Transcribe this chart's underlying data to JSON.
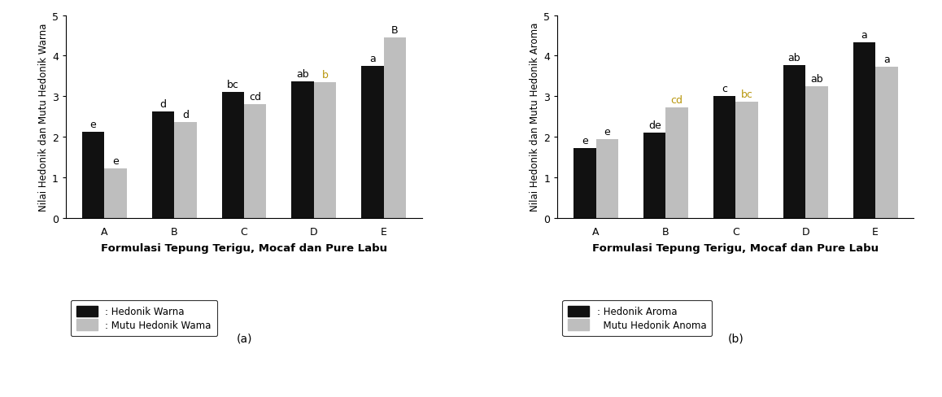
{
  "chart_a": {
    "categories": [
      "A",
      "B",
      "C",
      "D",
      "E"
    ],
    "hedonik_warna": [
      2.12,
      2.63,
      3.1,
      3.37,
      3.75
    ],
    "mutu_hedonik_warna": [
      1.22,
      2.37,
      2.8,
      3.35,
      4.45
    ],
    "hedonik_labels": [
      "e",
      "d",
      "bc",
      "ab",
      "a"
    ],
    "mutu_labels": [
      "e",
      "d",
      "cd",
      "b",
      "B"
    ],
    "hedonik_label_colors": [
      "#000000",
      "#000000",
      "#000000",
      "#000000",
      "#000000"
    ],
    "mutu_label_colors": [
      "#000000",
      "#000000",
      "#000000",
      "#b8960c",
      "#000000"
    ],
    "ylabel": "Nilai Hedonik dan Mutu Hedonik Warna",
    "xlabel": "Formulasi Tepung Terigu, Mocaf dan Pure Labu",
    "ylim": [
      0,
      5
    ],
    "yticks": [
      0,
      1,
      2,
      3,
      4,
      5
    ],
    "legend1": ": Hedonik Warna",
    "legend2": ": Mutu Hedonik Wama",
    "subtitle": "(a)"
  },
  "chart_b": {
    "categories": [
      "A",
      "B",
      "C",
      "D",
      "E"
    ],
    "hedonik_aroma": [
      1.73,
      2.1,
      3.0,
      3.77,
      4.33
    ],
    "mutu_hedonik_aroma": [
      1.95,
      2.73,
      2.87,
      3.25,
      3.73
    ],
    "hedonik_labels": [
      "e",
      "de",
      "c",
      "ab",
      "a"
    ],
    "mutu_labels": [
      "e",
      "cd",
      "bc",
      "ab",
      "a"
    ],
    "hedonik_label_colors": [
      "#000000",
      "#000000",
      "#000000",
      "#000000",
      "#000000"
    ],
    "mutu_label_colors": [
      "#000000",
      "#b8960c",
      "#b8960c",
      "#000000",
      "#000000"
    ],
    "ylabel": "Nilai Hedonik dan Mutu Hedonik Aroma",
    "xlabel": "Formulasi Tepung Terigu, Mocaf dan Pure Labu",
    "ylim": [
      0,
      5
    ],
    "yticks": [
      0,
      1,
      2,
      3,
      4,
      5
    ],
    "legend1": ": Hedonik Aroma",
    "legend2": "  Mutu Hedonik Anoma",
    "subtitle": "(b)"
  },
  "bar_color_black": "#111111",
  "bar_color_gray": "#bebebe",
  "bar_width": 0.32,
  "ylabel_fontsize": 8.5,
  "xlabel_fontsize": 9.5,
  "tick_fontsize": 9,
  "annot_fontsize": 9,
  "legend_fontsize": 8.5
}
